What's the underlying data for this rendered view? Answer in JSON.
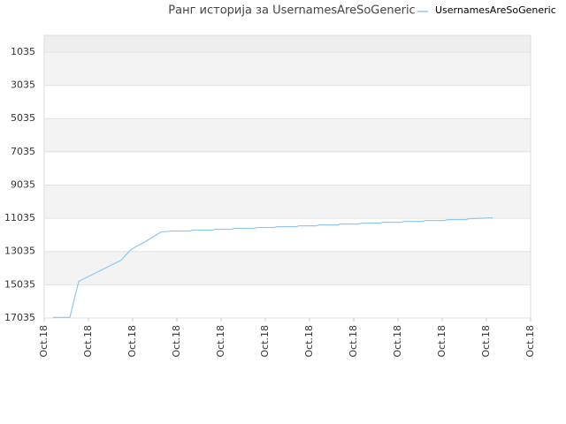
{
  "chart_data": {
    "type": "line",
    "title": "Ранг историја за UsernamesAreSoGeneric",
    "x": [
      0.2,
      0.58,
      0.78,
      1.74,
      1.96,
      2.32,
      2.64,
      2.9,
      3.3,
      3.36,
      3.8,
      3.86,
      4.24,
      4.3,
      4.74,
      4.8,
      5.2,
      5.26,
      5.7,
      5.76,
      6.16,
      6.22,
      6.64,
      6.7,
      7.12,
      7.18,
      7.6,
      7.66,
      8.08,
      8.14,
      8.56,
      8.62,
      9.06,
      9.12,
      9.54,
      9.6,
      10.14
    ],
    "series": [
      {
        "name": "UsernamesAreSoGeneric",
        "color": "#90c8f0",
        "values": [
          17000,
          17000,
          14830,
          13555,
          12918,
          12388,
          11857,
          11804,
          11804,
          11751,
          11751,
          11698,
          11698,
          11645,
          11645,
          11592,
          11592,
          11539,
          11539,
          11486,
          11486,
          11433,
          11433,
          11380,
          11380,
          11327,
          11327,
          11274,
          11274,
          11221,
          11221,
          11168,
          11168,
          11115,
          11115,
          11062,
          11009
        ]
      }
    ],
    "xlim": [
      0,
      11
    ],
    "xticks": [
      {
        "value": 0,
        "label": "Oct.18"
      },
      {
        "value": 1,
        "label": "Oct.18"
      },
      {
        "value": 2,
        "label": "Oct.18"
      },
      {
        "value": 3,
        "label": "Oct.18"
      },
      {
        "value": 4,
        "label": "Oct.18"
      },
      {
        "value": 5,
        "label": "Oct.18"
      },
      {
        "value": 6,
        "label": "Oct.18"
      },
      {
        "value": 7,
        "label": "Oct.18"
      },
      {
        "value": 8,
        "label": "Oct.18"
      },
      {
        "value": 9,
        "label": "Oct.18"
      },
      {
        "value": 10,
        "label": "Oct.18"
      },
      {
        "value": 11,
        "label": "Oct.18"
      }
    ],
    "ylim": [
      17035,
      28
    ],
    "yticks": [
      1035,
      3035,
      5035,
      7035,
      9035,
      11035,
      13035,
      15035,
      17035
    ],
    "grid": true
  }
}
